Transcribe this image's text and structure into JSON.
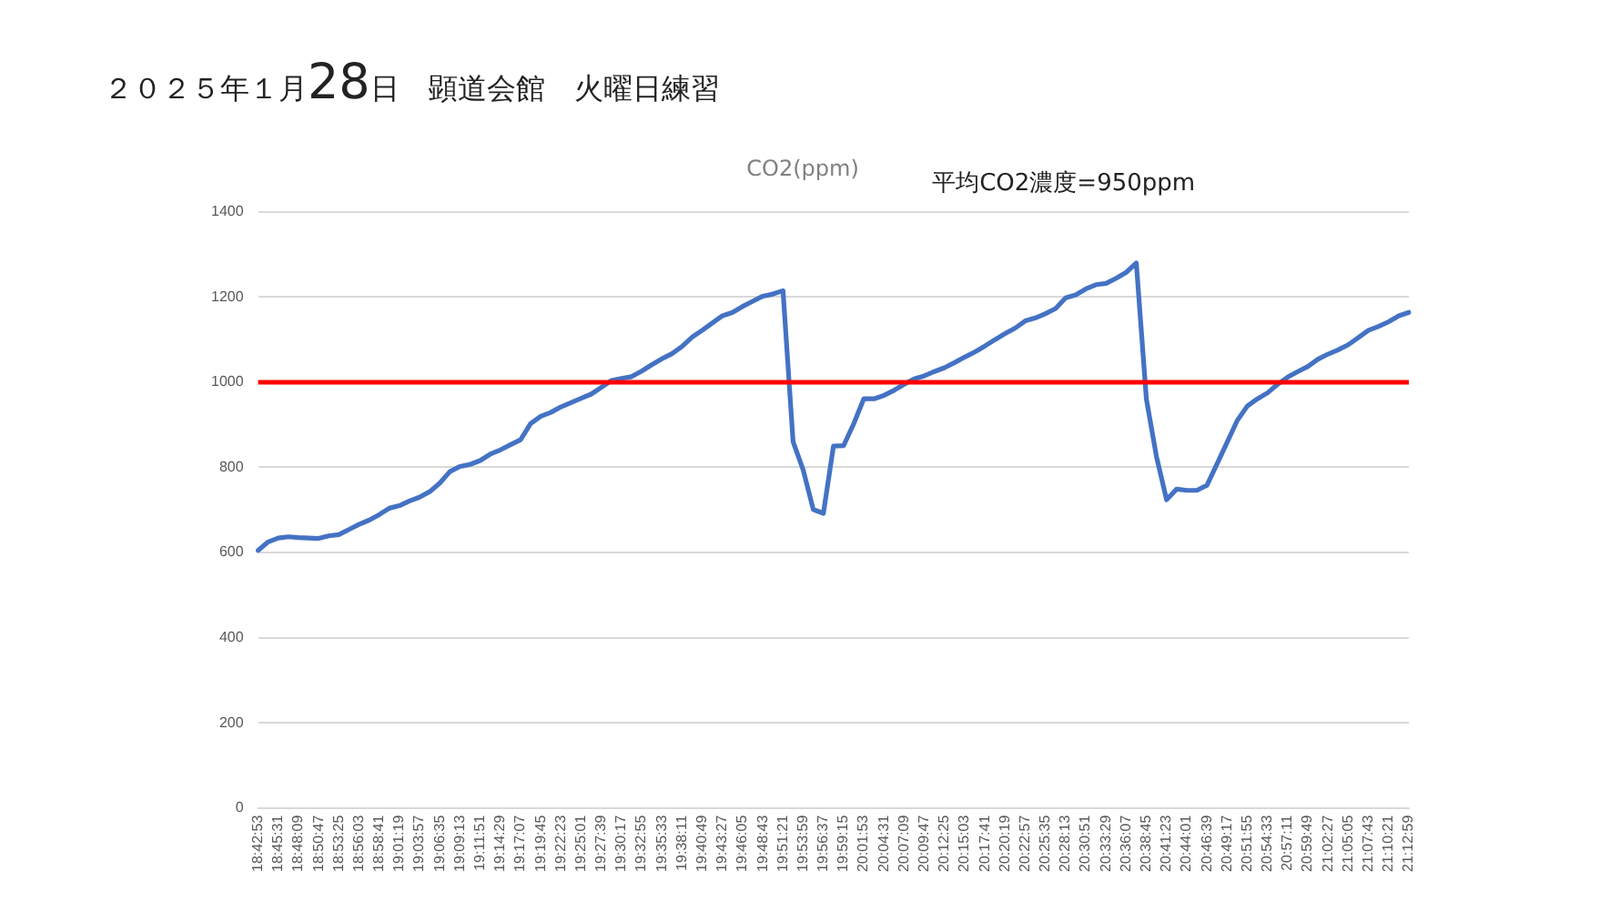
{
  "chart_data": {
    "type": "line",
    "title": "CO2(ppm)",
    "subtitle": "２０２５年１月28日　顕道会館　火曜日練習",
    "annotations": [
      "平均CO2濃度=950ppm"
    ],
    "categories": [
      "18:42:53",
      null,
      "18:45:31",
      null,
      "18:48:09",
      null,
      "18:50:47",
      null,
      "18:53:25",
      null,
      "18:56:03",
      null,
      "18:58:41",
      null,
      "19:01:19",
      null,
      "19:03:57",
      null,
      "19:06:35",
      null,
      "19:09:13",
      null,
      "19:11:51",
      null,
      "19:14:29",
      null,
      "19:17:07",
      null,
      "19:19:45",
      null,
      "19:22:23",
      null,
      "19:25:01",
      null,
      "19:27:39",
      null,
      "19:30:17",
      null,
      "19:32:55",
      null,
      "19:35:33",
      null,
      "19:38:11",
      null,
      "19:40:49",
      null,
      "19:43:27",
      null,
      "19:46:05",
      null,
      "19:48:43",
      null,
      "19:51:21",
      null,
      "19:53:59",
      null,
      "19:56:37",
      null,
      "19:59:15",
      null,
      "20:01:53",
      null,
      "20:04:31",
      null,
      "20:07:09",
      null,
      "20:09:47",
      null,
      "20:12:25",
      null,
      "20:15:03",
      null,
      "20:17:41",
      null,
      "20:20:19",
      null,
      "20:22:57",
      null,
      "20:25:35",
      null,
      "20:28:13",
      null,
      "20:30:51",
      null,
      "20:33:29",
      null,
      "20:36:07",
      null,
      "20:38:45",
      null,
      "20:41:23",
      null,
      "20:44:01",
      null,
      "20:46:39",
      null,
      "20:49:17",
      null,
      "20:51:55",
      null,
      "20:54:33",
      null,
      "20:57:11",
      null,
      "20:59:49",
      null,
      "21:02:27",
      null,
      "21:05:05",
      null,
      "21:07:43",
      null,
      "21:10:21",
      null,
      "21:12:59"
    ],
    "series": [
      {
        "color": "#4472c4",
        "values": [
          605,
          625,
          634,
          637,
          635,
          634,
          633,
          639,
          642,
          654,
          666,
          676,
          689,
          704,
          710,
          721,
          730,
          743,
          763,
          790,
          802,
          807,
          816,
          831,
          841,
          853,
          865,
          903,
          920,
          929,
          942,
          952,
          962,
          972,
          988,
          1004,
          1009,
          1013,
          1026,
          1041,
          1055,
          1067,
          1084,
          1106,
          1122,
          1139,
          1156,
          1164,
          1178,
          1190,
          1202,
          1207,
          1215,
          860,
          794,
          701,
          692,
          850,
          851,
          902,
          961,
          961,
          969,
          981,
          995,
          1008,
          1015,
          1025,
          1034,
          1046,
          1059,
          1071,
          1085,
          1100,
          1114,
          1127,
          1144,
          1151,
          1161,
          1173,
          1198,
          1205,
          1219,
          1229,
          1232,
          1244,
          1258,
          1280,
          960,
          825,
          724,
          749,
          746,
          746,
          758,
          808,
          859,
          910,
          944,
          961,
          975,
          995,
          1012,
          1025,
          1037,
          1054,
          1066,
          1076,
          1088,
          1105,
          1122,
          1131,
          1142,
          1156,
          1164
        ]
      }
    ],
    "ylim": [
      0,
      1400
    ],
    "yticks": [
      0,
      200,
      400,
      600,
      800,
      1000,
      1200,
      1400
    ],
    "grid": "y",
    "legend": false,
    "marker": "none",
    "line_style": "solid",
    "ref_lines": [
      {
        "axis": "y",
        "value": 1000,
        "color": "#ff0000"
      }
    ]
  }
}
